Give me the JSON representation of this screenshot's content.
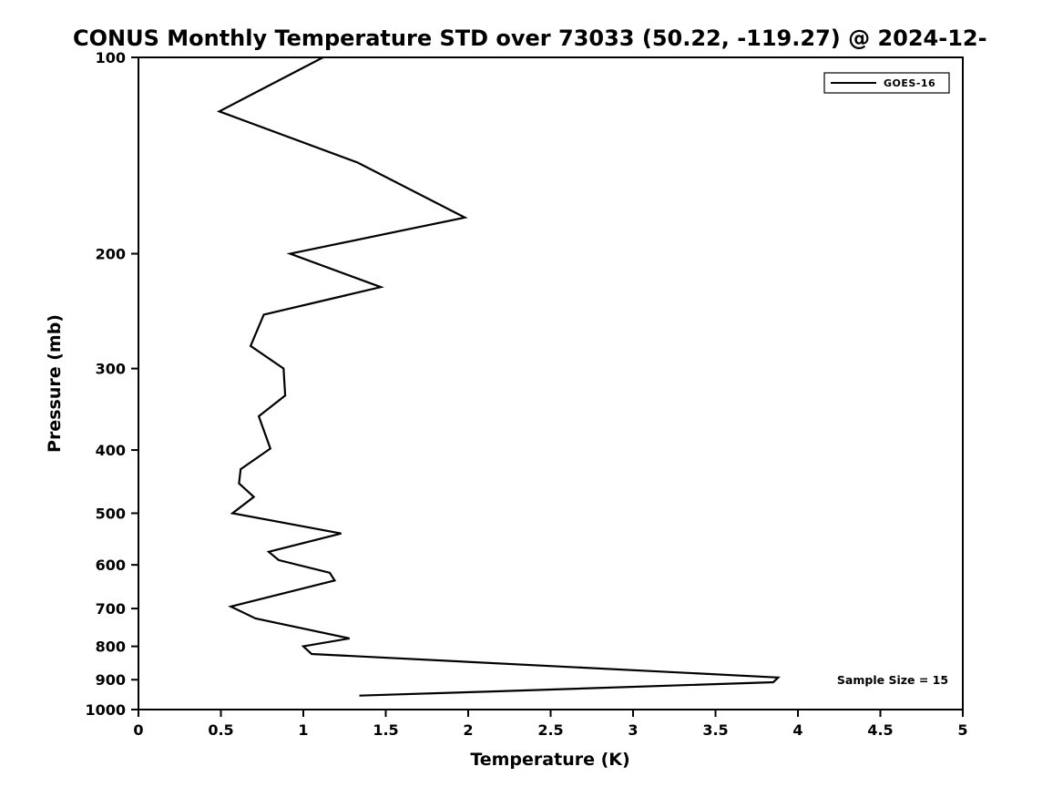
{
  "chart_data": {
    "type": "line",
    "title": "CONUS Monthly Temperature STD over 73033 (50.22, -119.27) @ 2024-12-",
    "xlabel": "Temperature (K)",
    "ylabel": "Pressure (mb)",
    "xlim": [
      0,
      5
    ],
    "ylim": [
      1000,
      100
    ],
    "yscale": "log",
    "grid": false,
    "xticks": [
      0,
      0.5,
      1,
      1.5,
      2,
      2.5,
      3,
      3.5,
      4,
      4.5,
      5
    ],
    "yticks": [
      100,
      200,
      300,
      400,
      500,
      600,
      700,
      800,
      900,
      1000
    ],
    "line_color": "#000000",
    "background_color": "#ffffff",
    "legend": {
      "position": "upper right",
      "entries": [
        {
          "label": "GOES-16",
          "color": "#000000"
        }
      ]
    },
    "annotation": {
      "text": "Sample Size = 15"
    },
    "series": [
      {
        "name": "GOES-16",
        "color": "#000000",
        "temperature_k": [
          1.12,
          0.49,
          1.33,
          1.98,
          0.92,
          1.47,
          0.76,
          0.68,
          0.88,
          0.89,
          0.73,
          0.8,
          0.62,
          0.61,
          0.7,
          0.57,
          1.23,
          0.79,
          0.85,
          1.16,
          1.19,
          0.56,
          0.71,
          1.28,
          1.0,
          1.05,
          3.88,
          3.85,
          2.15,
          1.34
        ],
        "pressure_mb": [
          100,
          121,
          145,
          176,
          200,
          225,
          248,
          277,
          300,
          330,
          355,
          398,
          428,
          450,
          472,
          500,
          537,
          573,
          590,
          617,
          634,
          695,
          725,
          778,
          800,
          822,
          893,
          908,
          938,
          952
        ]
      }
    ]
  }
}
